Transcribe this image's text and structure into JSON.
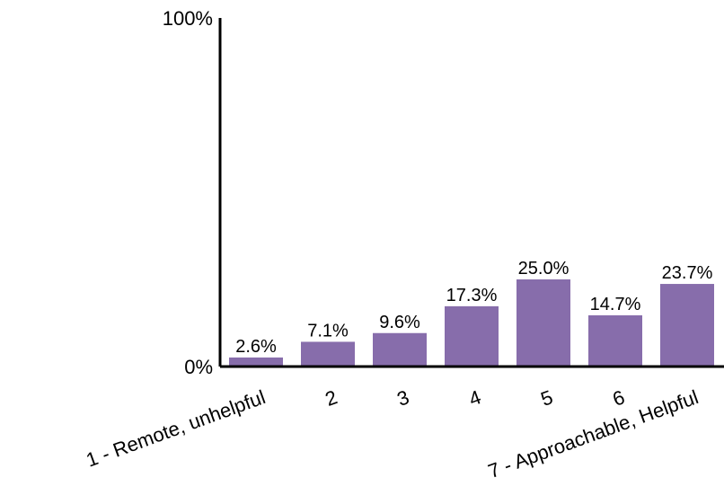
{
  "chart_data": {
    "type": "bar",
    "categories": [
      "1 - Remote, unhelpful",
      "2",
      "3",
      "4",
      "5",
      "6",
      "7 - Approachable, Helpful"
    ],
    "values": [
      2.6,
      7.1,
      9.6,
      17.3,
      25.0,
      14.7,
      23.7
    ],
    "data_labels": [
      "2.6%",
      "7.1%",
      "9.6%",
      "17.3%",
      "25.0%",
      "14.7%",
      "23.7%"
    ],
    "ylim": [
      0,
      100
    ],
    "y_ticks": [
      {
        "value": 0,
        "label": "0%"
      },
      {
        "value": 100,
        "label": "100%"
      }
    ],
    "grid": false,
    "bar_color": "#876DAB",
    "axis_color": "#000000"
  }
}
